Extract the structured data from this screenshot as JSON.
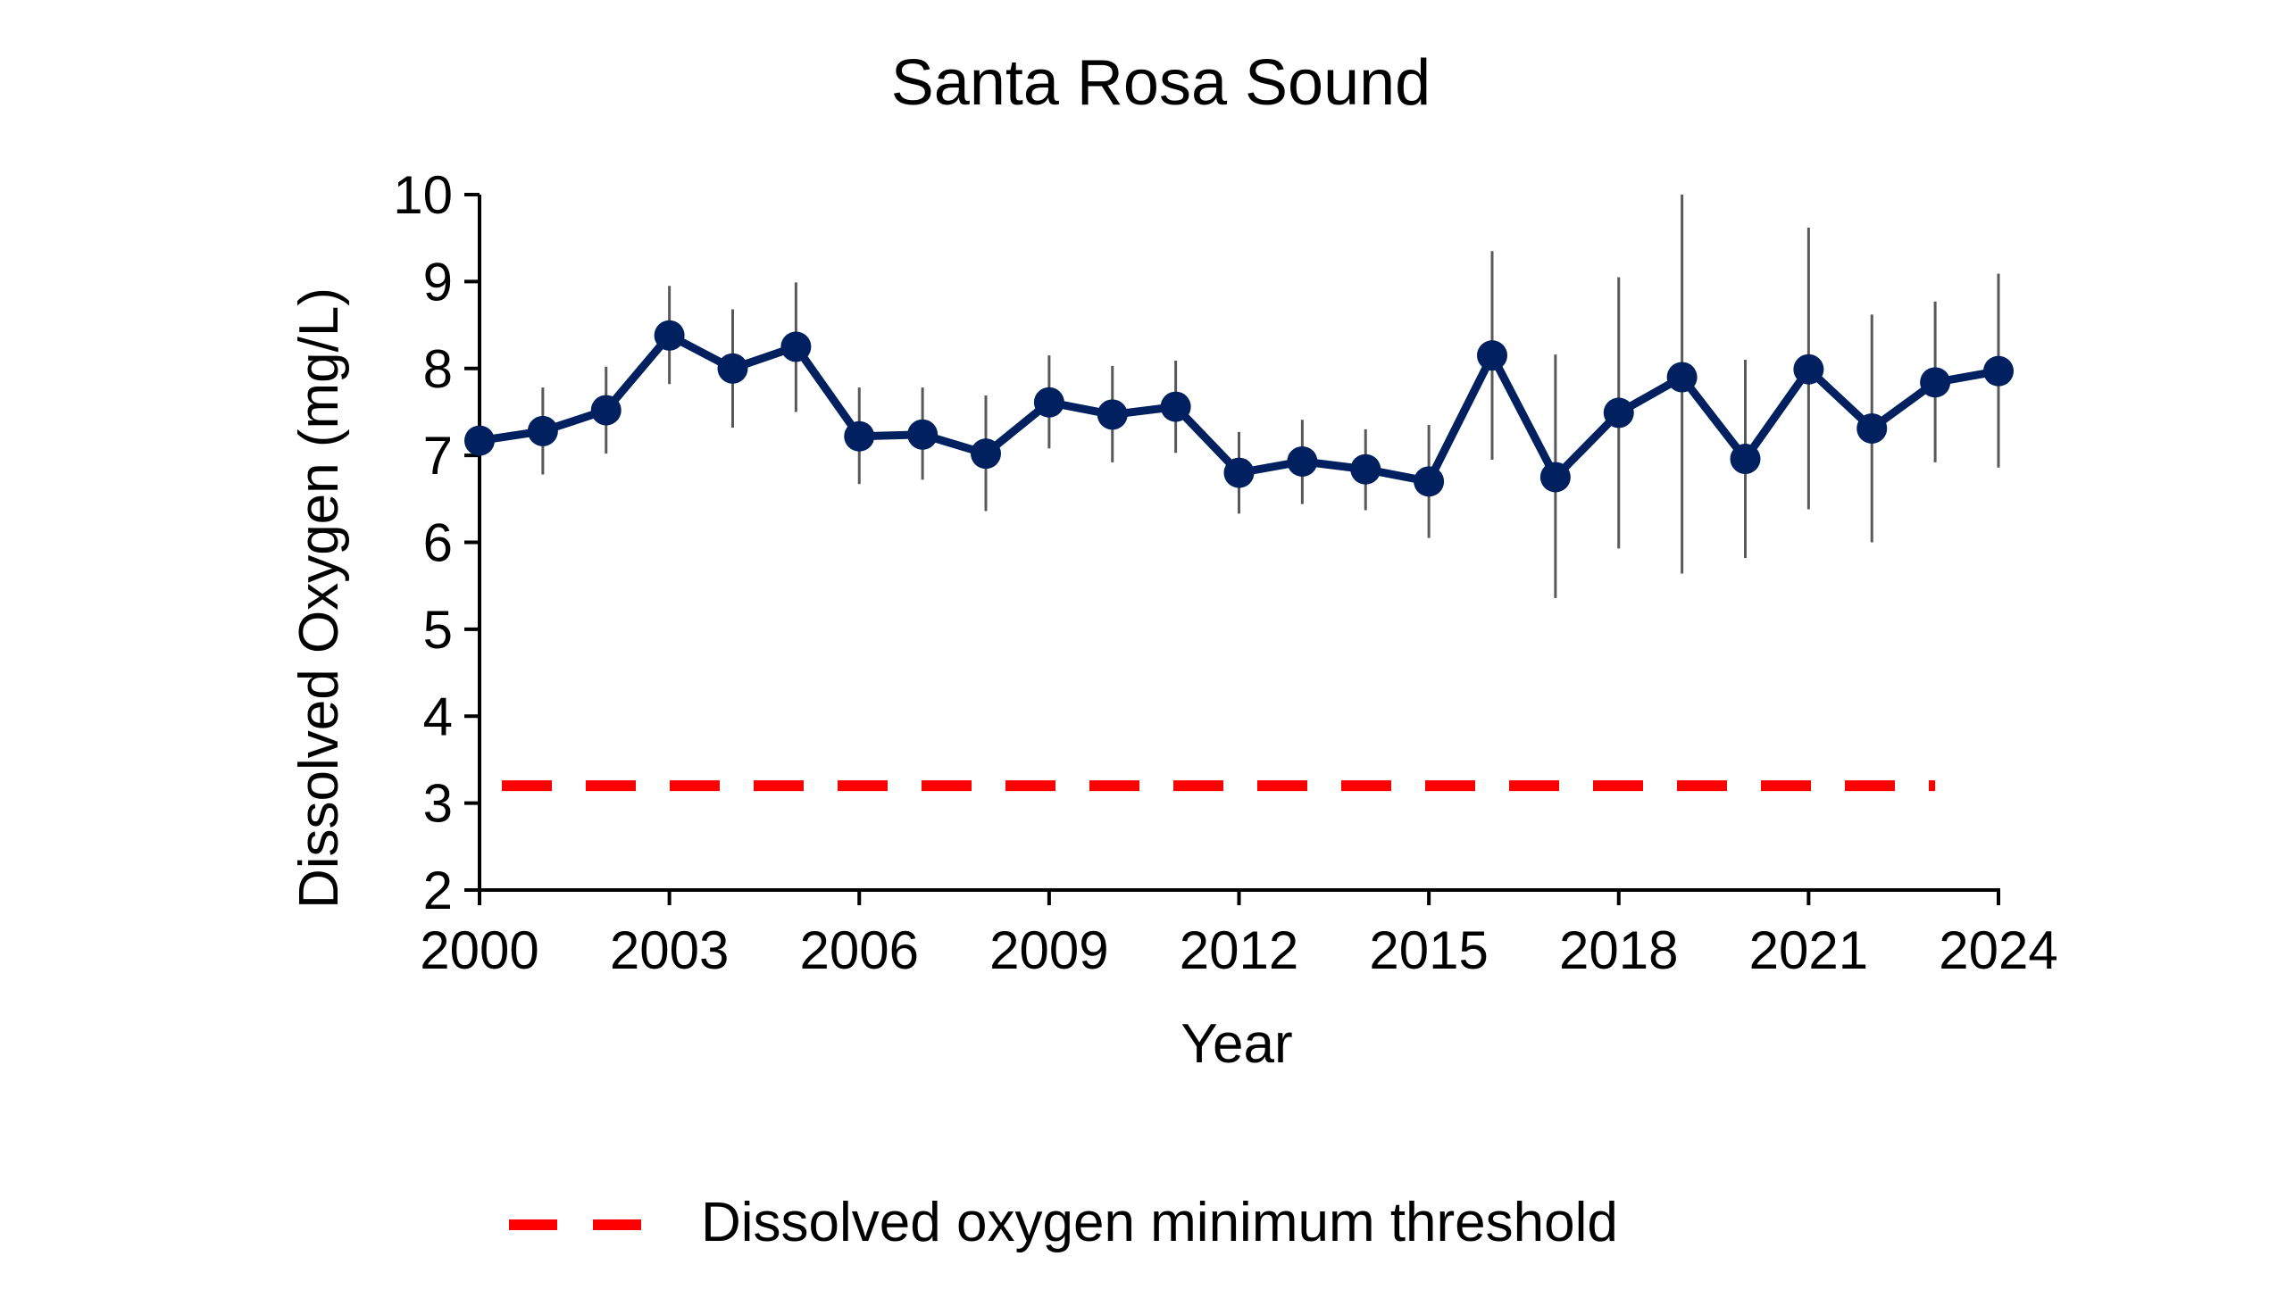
{
  "chart_data": {
    "type": "line",
    "title": "Santa Rosa Sound",
    "xlabel": "Year",
    "ylabel": "Dissolved Oxygen (mg/L)",
    "xlim": [
      2000,
      2024
    ],
    "ylim": [
      2,
      10
    ],
    "xticks": [
      2000,
      2003,
      2006,
      2009,
      2012,
      2015,
      2018,
      2021,
      2024
    ],
    "yticks": [
      2,
      3,
      4,
      5,
      6,
      7,
      8,
      9,
      10
    ],
    "grid": false,
    "legend_position": "bottom",
    "series": [
      {
        "x": [
          2000,
          2001,
          2002,
          2003,
          2004,
          2005,
          2006,
          2007,
          2008,
          2009,
          2010,
          2011,
          2012,
          2013,
          2014,
          2015,
          2016,
          2017,
          2018,
          2019,
          2020,
          2021,
          2022,
          2023,
          2024
        ],
        "y": [
          7.17,
          7.28,
          7.52,
          8.38,
          8.0,
          8.25,
          7.22,
          7.24,
          7.02,
          7.61,
          7.47,
          7.56,
          6.8,
          6.93,
          6.84,
          6.7,
          8.15,
          6.75,
          7.49,
          7.9,
          6.96,
          7.99,
          7.31,
          7.84,
          7.97
        ],
        "err_low": [
          6.7,
          6.78,
          7.02,
          7.82,
          7.32,
          7.5,
          6.67,
          6.72,
          6.36,
          7.08,
          6.92,
          7.03,
          6.33,
          6.44,
          6.37,
          6.05,
          6.95,
          5.36,
          5.93,
          5.64,
          5.82,
          6.38,
          6.0,
          6.92,
          6.86
        ],
        "err_high": [
          7.65,
          7.78,
          8.02,
          8.95,
          8.68,
          8.99,
          7.78,
          7.78,
          7.69,
          8.15,
          8.03,
          8.09,
          7.27,
          7.41,
          7.3,
          7.35,
          9.35,
          8.16,
          9.05,
          10.0,
          8.1,
          9.62,
          8.62,
          8.77,
          9.09
        ],
        "color": "#002060",
        "error_bar_color": "#595959"
      }
    ],
    "threshold": {
      "name": "Dissolved oxygen minimum threshold",
      "y": 3.2,
      "x_start": 2000,
      "x_end": 2023,
      "color": "#ff0000"
    }
  }
}
